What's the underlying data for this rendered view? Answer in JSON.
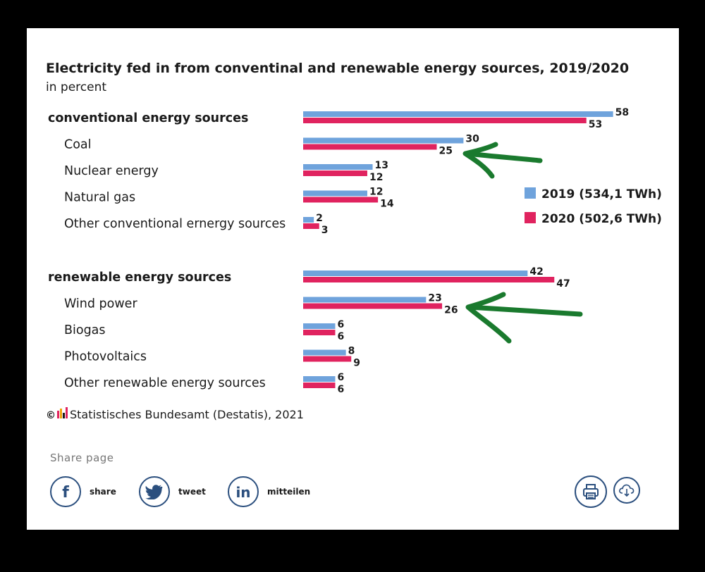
{
  "chart_data": {
    "type": "bar",
    "orientation": "horizontal",
    "title": "Electricity fed in from conventinal and renewable energy sources, 2019/2020",
    "subtitle": "in percent",
    "series": [
      {
        "name": "2019 (534,1 TWh)",
        "color": "#6fa3dc"
      },
      {
        "name": "2020 (502,6 TWh)",
        "color": "#e0235f"
      }
    ],
    "groups": [
      {
        "label": "conventional energy sources",
        "total": {
          "values": [
            58,
            53
          ]
        },
        "categories": [
          {
            "label": "Coal",
            "values": [
              30,
              25
            ]
          },
          {
            "label": "Nuclear energy",
            "values": [
              13,
              12
            ]
          },
          {
            "label": "Natural gas",
            "values": [
              12,
              14
            ]
          },
          {
            "label": "Other conventional ernergy sources",
            "values": [
              2,
              3
            ]
          }
        ]
      },
      {
        "label": "renewable energy sources",
        "total": {
          "values": [
            42,
            47
          ]
        },
        "categories": [
          {
            "label": "Wind power",
            "values": [
              23,
              26
            ]
          },
          {
            "label": "Biogas",
            "values": [
              6,
              6
            ]
          },
          {
            "label": "Photovoltaics",
            "values": [
              8,
              9
            ]
          },
          {
            "label": "Other renewable energy sources",
            "values": [
              6,
              6
            ]
          }
        ]
      }
    ],
    "xlim": [
      0,
      58
    ],
    "grid": false,
    "legend_position": "right",
    "annotations": [
      {
        "type": "arrow",
        "color": "#1a7a2e",
        "points_to": "Coal"
      },
      {
        "type": "arrow",
        "color": "#1a7a2e",
        "points_to": "Wind power"
      }
    ]
  },
  "source": "Statistisches Bundesamt (Destatis), 2021",
  "share": {
    "title": "Share page",
    "buttons": [
      {
        "label": "share",
        "icon": "facebook-icon"
      },
      {
        "label": "tweet",
        "icon": "twitter-icon"
      },
      {
        "label": "mitteilen",
        "icon": "linkedin-icon"
      }
    ]
  },
  "tools": [
    {
      "icon": "print-icon"
    },
    {
      "icon": "download-icon"
    }
  ],
  "colors": {
    "accent": "#2b4f7e",
    "arrow": "#1a7a2e"
  }
}
